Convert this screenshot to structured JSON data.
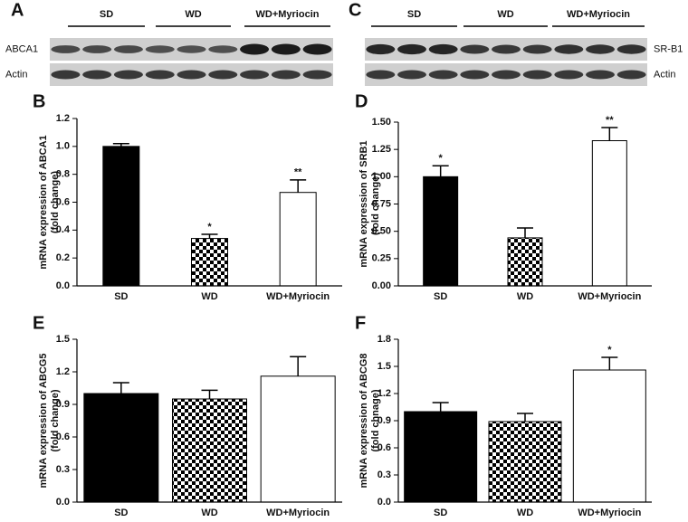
{
  "blots": [
    {
      "panel": "A",
      "groups": [
        "SD",
        "WD",
        "WD+Myriocin"
      ],
      "rows": [
        "ABCA1",
        "Actin"
      ]
    },
    {
      "panel": "C",
      "groups": [
        "SD",
        "WD",
        "WD+Myriocin"
      ],
      "rows": [
        "SR-B1",
        "Actin"
      ]
    }
  ],
  "chart_data": [
    {
      "type": "bar",
      "panel": "B",
      "ylabel": [
        "mRNA expression of ABCA1",
        "(fold change)"
      ],
      "categories": [
        "SD",
        "WD",
        "WD+Myriocin"
      ],
      "values": [
        1.0,
        0.34,
        0.67
      ],
      "errors": [
        0.02,
        0.03,
        0.09
      ],
      "annotations": [
        null,
        "*",
        "**"
      ],
      "colors": [
        "#000000",
        "checkered",
        "#ffffff"
      ],
      "ylim": [
        0,
        1.2
      ],
      "yticks": [
        {
          "value": 0,
          "label": "0.0"
        },
        0.2,
        0.4,
        0.6,
        0.8,
        {
          "value": 1,
          "label": "1.0"
        },
        1.2
      ]
    },
    {
      "type": "bar",
      "panel": "D",
      "ylabel": [
        "mRNA expression of SRB1",
        "(fold change)"
      ],
      "categories": [
        "SD",
        "WD",
        "WD+Myriocin"
      ],
      "values": [
        1.0,
        0.44,
        1.33
      ],
      "errors": [
        0.1,
        0.09,
        0.12
      ],
      "annotations": [
        "*",
        null,
        "**"
      ],
      "colors": [
        "#000000",
        "checkered",
        "#ffffff"
      ],
      "ylim": [
        0,
        1.5
      ],
      "yticks": [
        {
          "value": 0,
          "label": "0.00"
        },
        {
          "value": 0.25,
          "label": "0.25"
        },
        {
          "value": 0.5,
          "label": "0.50"
        },
        {
          "value": 0.75,
          "label": "0.75"
        },
        {
          "value": 1,
          "label": "1.00"
        },
        {
          "value": 1.25,
          "label": "1.25"
        },
        {
          "value": 1.5,
          "label": "1.50"
        }
      ]
    },
    {
      "type": "bar",
      "panel": "E",
      "ylabel": [
        "mRNA expression of ABCG5",
        "(fold change)"
      ],
      "categories": [
        "SD",
        "WD",
        "WD+Myriocin"
      ],
      "values": [
        1.0,
        0.95,
        1.16
      ],
      "errors": [
        0.1,
        0.08,
        0.18
      ],
      "annotations": [
        null,
        null,
        null
      ],
      "colors": [
        "#000000",
        "checkered",
        "#ffffff"
      ],
      "ylim": [
        0,
        1.5
      ],
      "yticks": [
        {
          "value": 0,
          "label": "0.0"
        },
        0.3,
        0.6,
        0.9,
        1.2,
        1.5
      ]
    },
    {
      "type": "bar",
      "panel": "F",
      "ylabel": [
        "mRNA expression of ABCG8",
        "(fold chnage)"
      ],
      "categories": [
        "SD",
        "WD",
        "WD+Myriocin"
      ],
      "values": [
        1.0,
        0.89,
        1.46
      ],
      "errors": [
        0.1,
        0.09,
        0.14
      ],
      "annotations": [
        null,
        null,
        "*"
      ],
      "colors": [
        "#000000",
        "checkered",
        "#ffffff"
      ],
      "ylim": [
        0,
        1.8
      ],
      "yticks": [
        {
          "value": 0,
          "label": "0.0"
        },
        0.3,
        0.6,
        0.9,
        1.2,
        1.5,
        1.8
      ]
    }
  ]
}
